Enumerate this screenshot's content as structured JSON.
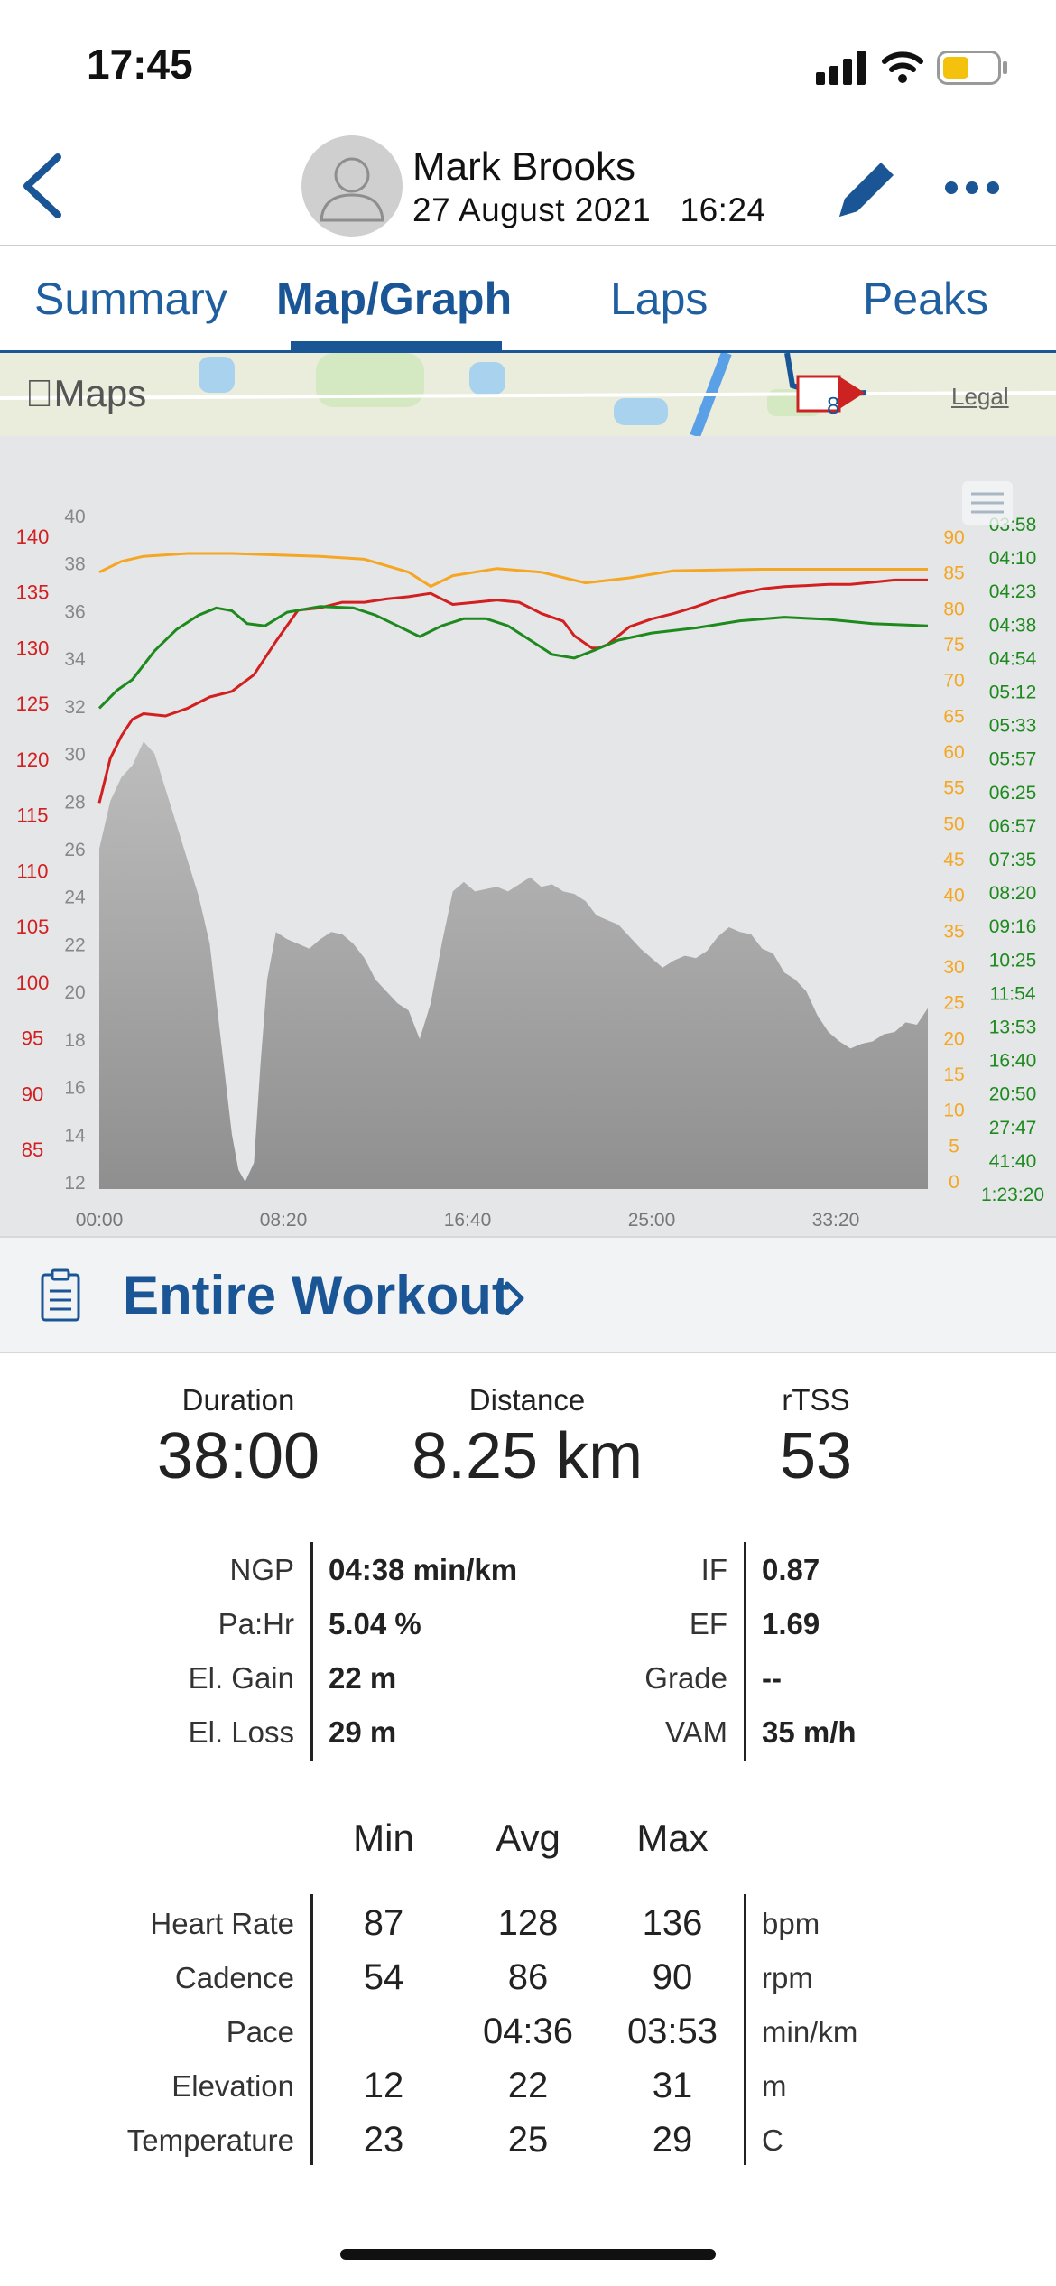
{
  "status_bar": {
    "time": "17:45"
  },
  "header": {
    "athlete_name": "Mark Brooks",
    "date": "27 August 2021",
    "time": "16:24"
  },
  "tabs": [
    {
      "label": "Summary",
      "active": false
    },
    {
      "label": "Map/Graph",
      "active": true
    },
    {
      "label": "Laps",
      "active": false
    },
    {
      "label": "Peaks",
      "active": false
    }
  ],
  "map": {
    "logo_text": "Maps",
    "legal_text": "Legal",
    "route_marker": "8"
  },
  "chart_data": {
    "type": "line",
    "x_tick_labels": [
      "00:00",
      "08:20",
      "16:40",
      "25:00",
      "33:20"
    ],
    "y_axes": {
      "heart_rate": {
        "ticks": [
          "140",
          "135",
          "130",
          "125",
          "120",
          "115",
          "110",
          "105",
          "100",
          "95",
          "90",
          "85"
        ],
        "color": "#d21f1f"
      },
      "elevation": {
        "ticks": [
          "40",
          "38",
          "36",
          "34",
          "32",
          "30",
          "28",
          "26",
          "24",
          "22",
          "20",
          "18",
          "16",
          "14",
          "12"
        ],
        "color": "#888888"
      },
      "cadence": {
        "ticks": [
          "90",
          "85",
          "80",
          "75",
          "70",
          "65",
          "60",
          "55",
          "50",
          "45",
          "40",
          "35",
          "30",
          "25",
          "20",
          "15",
          "10",
          "5",
          "0"
        ],
        "color": "#f5a623"
      },
      "pace": {
        "ticks": [
          "03:58",
          "04:10",
          "04:23",
          "04:38",
          "04:54",
          "05:12",
          "05:33",
          "05:57",
          "06:25",
          "06:57",
          "07:35",
          "08:20",
          "09:16",
          "10:25",
          "11:54",
          "13:53",
          "16:40",
          "20:50",
          "27:47",
          "41:40",
          "1:23:20"
        ],
        "color": "#1e8a1e"
      }
    },
    "series": [
      {
        "color": "#f5a623",
        "x": [
          0,
          1,
          2,
          4,
          6,
          8,
          10,
          12,
          14,
          15,
          16,
          18,
          20,
          22,
          24,
          26,
          28,
          30,
          32,
          34,
          36,
          37.5
        ],
        "y": [
          85,
          86.5,
          87.2,
          87.6,
          87.6,
          87.4,
          87.2,
          86.8,
          85,
          83,
          84.5,
          85.5,
          85,
          83.5,
          84.2,
          85.2,
          85.3,
          85.4,
          85.4,
          85.4,
          85.4,
          85.4
        ]
      },
      {
        "color": "#1e8a1e",
        "x": [
          0,
          0.8,
          1.5,
          2.5,
          3.5,
          4.5,
          5.3,
          6,
          6.7,
          7.5,
          8.5,
          10,
          11.5,
          12.5,
          13.5,
          14.5,
          15.5,
          16.5,
          17.5,
          18.5,
          19.5,
          20.5,
          21.5,
          22.5,
          23.5,
          25,
          27,
          29,
          31,
          33,
          35,
          37.5
        ],
        "y": [
          66,
          68.5,
          70,
          74,
          77,
          79,
          80,
          79.6,
          77.8,
          77.5,
          79.4,
          80.2,
          80,
          79,
          77.5,
          76,
          77.5,
          78.5,
          78.5,
          77.5,
          75.5,
          73.5,
          73,
          74.2,
          75.5,
          76.5,
          77.2,
          78.2,
          78.7,
          78.4,
          77.8,
          77.5
        ]
      },
      {
        "color": "#d21f1f",
        "x": [
          0,
          0.5,
          1,
          1.5,
          2,
          3,
          4,
          5,
          6,
          7,
          8,
          9,
          10,
          11,
          12,
          13,
          14,
          15,
          15.5,
          16,
          17,
          18,
          19,
          19.5,
          20,
          21,
          21.5,
          22,
          22.3,
          22.6,
          23,
          23.5,
          24,
          25,
          26,
          27,
          28,
          29,
          30,
          31,
          32,
          33,
          34,
          35,
          36,
          37,
          37.5
        ],
        "y": [
          116,
          120,
          122,
          123.5,
          124,
          123.8,
          124.5,
          125.5,
          126,
          127.5,
          130.5,
          133.3,
          133.5,
          134,
          134,
          134.3,
          134.5,
          134.8,
          134.3,
          133.8,
          134,
          134.2,
          134,
          133.5,
          133,
          132.3,
          131,
          130.3,
          129.9,
          129.9,
          130.2,
          131,
          131.8,
          132.5,
          133,
          133.6,
          134.3,
          134.8,
          135.2,
          135.4,
          135.5,
          135.6,
          135.6,
          135.8,
          136,
          136,
          136
        ]
      },
      {
        "color": "#9a9a9a",
        "fill": true,
        "x": [
          0,
          0.5,
          1,
          1.5,
          2,
          2.5,
          3,
          3.5,
          4,
          4.5,
          5,
          5.5,
          6,
          6.3,
          6.6,
          7,
          7.3,
          7.6,
          8,
          8.5,
          9,
          9.5,
          10,
          10.5,
          11,
          11.5,
          12,
          12.5,
          13,
          13.5,
          14,
          14.5,
          15,
          15.5,
          16,
          16.5,
          17,
          17.5,
          18,
          18.5,
          19,
          19.5,
          20,
          20.5,
          21,
          21.5,
          22,
          22.5,
          23,
          23.5,
          24,
          24.5,
          25,
          25.5,
          26,
          26.5,
          27,
          27.5,
          28,
          28.5,
          29,
          29.5,
          30,
          30.5,
          31,
          31.5,
          32,
          32.5,
          33,
          33.5,
          34,
          34.5,
          35,
          35.5,
          36,
          36.5,
          37,
          37.5
        ],
        "y": [
          26,
          28,
          29,
          29.5,
          30.5,
          30,
          28.5,
          27,
          25.5,
          24,
          22,
          18,
          14,
          12.5,
          12,
          12.8,
          17,
          20.5,
          22.5,
          22.2,
          22,
          21.8,
          22.2,
          22.5,
          22.4,
          22,
          21.4,
          20.5,
          20,
          19.5,
          19.2,
          18,
          19.5,
          22,
          24.2,
          24.6,
          24.2,
          24.3,
          24.4,
          24.2,
          24.5,
          24.8,
          24.4,
          24.5,
          24.2,
          24.1,
          23.8,
          23.2,
          23,
          22.8,
          22.3,
          21.8,
          21.4,
          21,
          21.3,
          21.5,
          21.4,
          21.7,
          22.3,
          22.7,
          22.5,
          22.4,
          21.8,
          21.6,
          20.8,
          20.5,
          20,
          19,
          18.3,
          17.9,
          17.6,
          17.8,
          17.9,
          18.2,
          18.3,
          18.7,
          18.6,
          19.3
        ]
      }
    ]
  },
  "workout_section": {
    "label": "Entire Workout"
  },
  "summary": {
    "duration": {
      "label": "Duration",
      "value": "38:00"
    },
    "distance": {
      "label": "Distance",
      "value": "8.25 km"
    },
    "rtss": {
      "label": "rTSS",
      "value": "53"
    }
  },
  "metrics_left": [
    {
      "label": "NGP",
      "value": "04:38 min/km"
    },
    {
      "label": "Pa:Hr",
      "value": "5.04 %"
    },
    {
      "label": "El. Gain",
      "value": "22 m"
    },
    {
      "label": "El. Loss",
      "value": "29 m"
    }
  ],
  "metrics_right": [
    {
      "label": "IF",
      "value": "0.87"
    },
    {
      "label": "EF",
      "value": "1.69"
    },
    {
      "label": "Grade",
      "value": "--"
    },
    {
      "label": "VAM",
      "value": "35 m/h"
    }
  ],
  "stats_table": {
    "headers": [
      "Min",
      "Avg",
      "Max"
    ],
    "rows": [
      {
        "label": "Heart Rate",
        "min": "87",
        "avg": "128",
        "max": "136",
        "unit": "bpm"
      },
      {
        "label": "Cadence",
        "min": "54",
        "avg": "86",
        "max": "90",
        "unit": "rpm"
      },
      {
        "label": "Pace",
        "min": "",
        "avg": "04:36",
        "max": "03:53",
        "unit": "min/km"
      },
      {
        "label": "Elevation",
        "min": "12",
        "avg": "22",
        "max": "31",
        "unit": "m"
      },
      {
        "label": "Temperature",
        "min": "23",
        "avg": "25",
        "max": "29",
        "unit": "C"
      }
    ]
  }
}
